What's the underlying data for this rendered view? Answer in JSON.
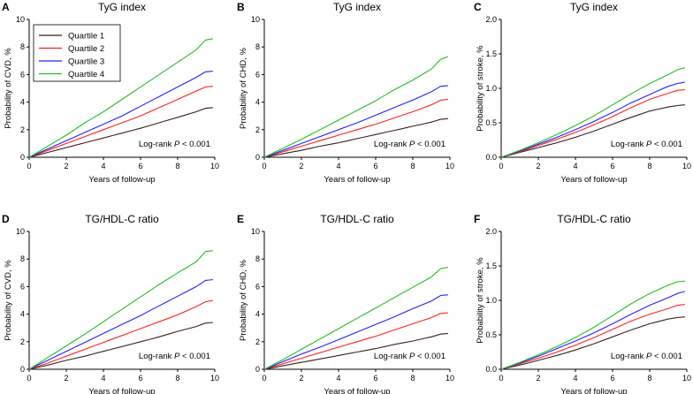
{
  "legend": {
    "entries": [
      {
        "label": "Quartile 1",
        "color": "#3a1f1f"
      },
      {
        "label": "Quartile 2",
        "color": "#ff2020"
      },
      {
        "label": "Quartile 3",
        "color": "#2020ff"
      },
      {
        "label": "Quartile 4",
        "color": "#20c020"
      }
    ]
  },
  "chart_data": [
    {
      "type": "line",
      "panel": "A",
      "title": "TyG index",
      "xlabel": "Years of follow-up",
      "ylabel": "Probability of CVD, %",
      "xlim": [
        0,
        10
      ],
      "ylim": [
        0,
        10
      ],
      "xticks": [
        0,
        2,
        4,
        6,
        8,
        10
      ],
      "yticks": [
        0,
        2,
        4,
        6,
        8,
        10
      ],
      "ytick_labels": [
        "0",
        "2",
        "4",
        "6",
        "8",
        "10"
      ],
      "annotation": {
        "prefix": "Log-rank ",
        "italic": "P",
        "suffix": " < 0.001"
      },
      "x": [
        0,
        1,
        2,
        3,
        4,
        5,
        6,
        7,
        8,
        9,
        9.5,
        9.9
      ],
      "series": [
        {
          "name": "Quartile 1",
          "values": [
            0,
            0.35,
            0.7,
            1.05,
            1.4,
            1.75,
            2.1,
            2.5,
            2.9,
            3.3,
            3.55,
            3.6
          ]
        },
        {
          "name": "Quartile 2",
          "values": [
            0,
            0.5,
            1.0,
            1.5,
            2.0,
            2.5,
            3.0,
            3.6,
            4.2,
            4.8,
            5.1,
            5.15
          ]
        },
        {
          "name": "Quartile 3",
          "values": [
            0,
            0.6,
            1.2,
            1.8,
            2.4,
            3.0,
            3.7,
            4.4,
            5.1,
            5.8,
            6.2,
            6.25
          ]
        },
        {
          "name": "Quartile 4",
          "values": [
            0,
            0.8,
            1.6,
            2.5,
            3.3,
            4.2,
            5.1,
            6.0,
            6.9,
            7.8,
            8.5,
            8.6
          ]
        }
      ]
    },
    {
      "type": "line",
      "panel": "B",
      "title": "TyG index",
      "xlabel": "Years of follow-up",
      "ylabel": "Probability of CHD, %",
      "xlim": [
        0,
        10
      ],
      "ylim": [
        0,
        10
      ],
      "xticks": [
        0,
        2,
        4,
        6,
        8,
        10
      ],
      "yticks": [
        0,
        2,
        4,
        6,
        8,
        10
      ],
      "ytick_labels": [
        "0",
        "2",
        "4",
        "6",
        "8",
        "10"
      ],
      "annotation": {
        "prefix": "Log-rank ",
        "italic": "P",
        "suffix": " < 0.001"
      },
      "x": [
        0,
        1,
        2,
        3,
        4,
        5,
        6,
        7,
        8,
        9,
        9.5,
        9.9
      ],
      "series": [
        {
          "name": "Quartile 1",
          "values": [
            0,
            0.25,
            0.5,
            0.8,
            1.05,
            1.35,
            1.65,
            1.95,
            2.25,
            2.55,
            2.75,
            2.8
          ]
        },
        {
          "name": "Quartile 2",
          "values": [
            0,
            0.4,
            0.8,
            1.2,
            1.6,
            2.0,
            2.4,
            2.85,
            3.3,
            3.8,
            4.15,
            4.2
          ]
        },
        {
          "name": "Quartile 3",
          "values": [
            0,
            0.5,
            1.0,
            1.5,
            2.0,
            2.5,
            3.05,
            3.6,
            4.15,
            4.75,
            5.15,
            5.2
          ]
        },
        {
          "name": "Quartile 4",
          "values": [
            0,
            0.65,
            1.3,
            2.0,
            2.7,
            3.4,
            4.1,
            4.9,
            5.6,
            6.4,
            7.1,
            7.3
          ]
        }
      ]
    },
    {
      "type": "line",
      "panel": "C",
      "title": "TyG index",
      "xlabel": "Years of follow-up",
      "ylabel": "Probability of stroke, %",
      "xlim": [
        0,
        10
      ],
      "ylim": [
        0,
        2.0
      ],
      "xticks": [
        0,
        2,
        4,
        6,
        8,
        10
      ],
      "yticks": [
        0,
        0.5,
        1.0,
        1.5,
        2.0
      ],
      "ytick_labels": [
        "0.0",
        "0.5",
        "1.0",
        "1.5",
        "2.0"
      ],
      "annotation": {
        "prefix": "Log-rank ",
        "italic": "P",
        "suffix": " < 0.001"
      },
      "x": [
        0,
        1,
        2,
        3,
        4,
        5,
        6,
        7,
        8,
        9,
        9.5,
        9.9
      ],
      "series": [
        {
          "name": "Quartile 1",
          "values": [
            0,
            0.07,
            0.14,
            0.21,
            0.29,
            0.38,
            0.48,
            0.58,
            0.67,
            0.73,
            0.75,
            0.76
          ]
        },
        {
          "name": "Quartile 2",
          "values": [
            0,
            0.08,
            0.17,
            0.26,
            0.36,
            0.47,
            0.59,
            0.72,
            0.84,
            0.93,
            0.97,
            0.98
          ]
        },
        {
          "name": "Quartile 3",
          "values": [
            0,
            0.09,
            0.19,
            0.29,
            0.4,
            0.52,
            0.65,
            0.79,
            0.91,
            1.03,
            1.07,
            1.09
          ]
        },
        {
          "name": "Quartile 4",
          "values": [
            0,
            0.1,
            0.21,
            0.33,
            0.46,
            0.6,
            0.76,
            0.92,
            1.07,
            1.2,
            1.27,
            1.3
          ]
        }
      ]
    },
    {
      "type": "line",
      "panel": "D",
      "title": "TG/HDL-C ratio",
      "xlabel": "Years of follow-up",
      "ylabel": "Probability of CVD, %",
      "xlim": [
        0,
        10
      ],
      "ylim": [
        0,
        10
      ],
      "xticks": [
        0,
        2,
        4,
        6,
        8,
        10
      ],
      "yticks": [
        0,
        2,
        4,
        6,
        8,
        10
      ],
      "ytick_labels": [
        "0",
        "2",
        "4",
        "6",
        "8",
        "10"
      ],
      "annotation": {
        "prefix": "Log-rank ",
        "italic": "P",
        "suffix": " < 0.001"
      },
      "x": [
        0,
        1,
        2,
        3,
        4,
        5,
        6,
        7,
        8,
        9,
        9.5,
        9.9
      ],
      "series": [
        {
          "name": "Quartile 1",
          "values": [
            0,
            0.3,
            0.65,
            0.95,
            1.3,
            1.65,
            2.0,
            2.35,
            2.75,
            3.1,
            3.35,
            3.4
          ]
        },
        {
          "name": "Quartile 2",
          "values": [
            0,
            0.45,
            0.95,
            1.45,
            1.95,
            2.45,
            2.95,
            3.45,
            3.95,
            4.55,
            4.9,
            5.0
          ]
        },
        {
          "name": "Quartile 3",
          "values": [
            0,
            0.65,
            1.3,
            1.95,
            2.6,
            3.25,
            3.9,
            4.6,
            5.3,
            6.0,
            6.45,
            6.5
          ]
        },
        {
          "name": "Quartile 4",
          "values": [
            0,
            0.85,
            1.7,
            2.55,
            3.45,
            4.35,
            5.25,
            6.15,
            7.0,
            7.8,
            8.55,
            8.6
          ]
        }
      ]
    },
    {
      "type": "line",
      "panel": "E",
      "title": "TG/HDL-C ratio",
      "xlabel": "Years of follow-up",
      "ylabel": "Probability of CHD, %",
      "xlim": [
        0,
        10
      ],
      "ylim": [
        0,
        10
      ],
      "xticks": [
        0,
        2,
        4,
        6,
        8,
        10
      ],
      "yticks": [
        0,
        2,
        4,
        6,
        8,
        10
      ],
      "ytick_labels": [
        "0",
        "2",
        "4",
        "6",
        "8",
        "10"
      ],
      "annotation": {
        "prefix": "Log-rank ",
        "italic": "P",
        "suffix": " < 0.001"
      },
      "x": [
        0,
        1,
        2,
        3,
        4,
        5,
        6,
        7,
        8,
        9,
        9.5,
        9.9
      ],
      "series": [
        {
          "name": "Quartile 1",
          "values": [
            0,
            0.25,
            0.5,
            0.75,
            1.0,
            1.25,
            1.5,
            1.8,
            2.05,
            2.35,
            2.55,
            2.6
          ]
        },
        {
          "name": "Quartile 2",
          "values": [
            0,
            0.4,
            0.8,
            1.2,
            1.6,
            2.0,
            2.4,
            2.85,
            3.3,
            3.75,
            4.05,
            4.1
          ]
        },
        {
          "name": "Quartile 3",
          "values": [
            0,
            0.55,
            1.1,
            1.6,
            2.15,
            2.7,
            3.25,
            3.8,
            4.4,
            4.95,
            5.35,
            5.4
          ]
        },
        {
          "name": "Quartile 4",
          "values": [
            0,
            0.7,
            1.45,
            2.2,
            2.95,
            3.7,
            4.45,
            5.2,
            5.95,
            6.7,
            7.3,
            7.4
          ]
        }
      ]
    },
    {
      "type": "line",
      "panel": "F",
      "title": "TG/HDL-C ratio",
      "xlabel": "Years of follow-up",
      "ylabel": "Probability of stroke, %",
      "xlim": [
        0,
        10
      ],
      "ylim": [
        0,
        2.0
      ],
      "xticks": [
        0,
        2,
        4,
        6,
        8,
        10
      ],
      "yticks": [
        0,
        0.5,
        1.0,
        1.5,
        2.0
      ],
      "ytick_labels": [
        "0.0",
        "0.5",
        "1.0",
        "1.5",
        "2.0"
      ],
      "annotation": {
        "prefix": "Log-rank ",
        "italic": "P",
        "suffix": " < 0.001"
      },
      "x": [
        0,
        1,
        2,
        3,
        4,
        5,
        6,
        7,
        8,
        9,
        9.5,
        9.9
      ],
      "series": [
        {
          "name": "Quartile 1",
          "values": [
            0,
            0.06,
            0.13,
            0.2,
            0.28,
            0.37,
            0.47,
            0.57,
            0.66,
            0.73,
            0.75,
            0.76
          ]
        },
        {
          "name": "Quartile 2",
          "values": [
            0,
            0.08,
            0.16,
            0.25,
            0.35,
            0.46,
            0.58,
            0.7,
            0.8,
            0.88,
            0.93,
            0.94
          ]
        },
        {
          "name": "Quartile 3",
          "values": [
            0,
            0.09,
            0.19,
            0.3,
            0.41,
            0.53,
            0.66,
            0.8,
            0.93,
            1.04,
            1.1,
            1.13
          ]
        },
        {
          "name": "Quartile 4",
          "values": [
            0,
            0.1,
            0.21,
            0.33,
            0.46,
            0.61,
            0.78,
            0.95,
            1.1,
            1.22,
            1.27,
            1.28
          ]
        }
      ]
    }
  ]
}
